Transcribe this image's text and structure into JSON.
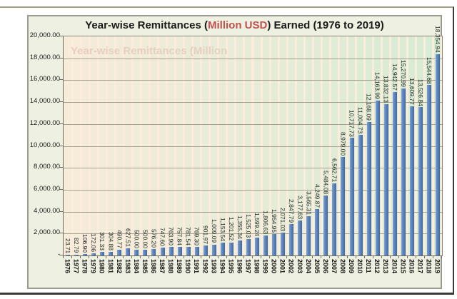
{
  "watermark": {
    "text": "Year-wise Remittances (Million"
  },
  "chart_data": {
    "type": "bar",
    "title": "Year-wise Remittances (Million USD) Earned (1976 to 2019)",
    "title_parts": {
      "prefix": "Year-wise Remittances (",
      "highlight": "Million USD",
      "suffix": ") Earned (1976 to 2019)"
    },
    "xlabel": "",
    "ylabel": "",
    "ylim": [
      0,
      20000
    ],
    "ytick_interval": 2000,
    "grid": true,
    "legend_position": "none",
    "categories": [
      "1976",
      "1977",
      "1978",
      "1979",
      "1980",
      "1981",
      "1982",
      "1983",
      "1984",
      "1985",
      "1986",
      "1987",
      "1988",
      "1989",
      "1990",
      "1991",
      "1992",
      "1993",
      "1994",
      "1995",
      "1996",
      "1997",
      "1998",
      "1999",
      "2000",
      "2001",
      "2002",
      "2003",
      "2004",
      "2005",
      "2006",
      "2007",
      "2008",
      "2009",
      "2010",
      "2011",
      "2012",
      "2013",
      "2014",
      "2015",
      "2016",
      "2017",
      "2018",
      "2019"
    ],
    "values": [
      23.71,
      82.79,
      106.9,
      172.06,
      301.33,
      304.88,
      490.77,
      627.51,
      500.0,
      500.0,
      576.2,
      747.6,
      763.9,
      757.84,
      781.54,
      769.3,
      901.97,
      1009.09,
      1153.54,
      1201.52,
      1355.34,
      1525.03,
      1599.24,
      1806.63,
      1954.95,
      2071.03,
      2847.79,
      3177.63,
      3565.31,
      4249.87,
      5484.08,
      6562.71,
      8979.0,
      10717.73,
      11004.73,
      12168.09,
      14163.99,
      13832.13,
      14942.57,
      15270.99,
      13609.77,
      13526.84,
      15544.68,
      18354.94
    ],
    "value_labels": [
      "23.71",
      "82.79",
      "106.90",
      "172.06",
      "301.33",
      "304.88",
      "490.77",
      "627.51",
      "500.00",
      "500.00",
      "576.20",
      "747.60",
      "763.90",
      "757.84",
      "781.54",
      "769.30",
      "901.97",
      "1,009.09",
      "1,153.54",
      "1,201.52",
      "1,355.34",
      "1,525.03",
      "1,599.24",
      "1,806.63",
      "1,954.95",
      "2,071.03",
      "2,847.79",
      "3,177.63",
      "3,565.31",
      "4,249.87",
      "5,484.08",
      "6,562.71",
      "8,979.00",
      "10,717.73",
      "11,004.73",
      "12,168.09",
      "14,163.99",
      "13,832.13",
      "14,942.57",
      "15,270.99",
      "13,609.77",
      "13,526.84",
      "15,544.68",
      "18,354.94"
    ],
    "ytick_labels": [
      "20,000.00",
      "18,000.00",
      "16,000.00",
      "14,000.00",
      "12,000.00",
      "10,000.00",
      "8,000.00",
      "6,000.00",
      "4,000.00",
      "2,000.00",
      "-"
    ],
    "colors": {
      "bar_light": "#7f9fd2",
      "bar_mid": "#5580bd",
      "bar_dark": "#44689c",
      "plot_bg": "#fdecdc",
      "chart_bg": "#eef1e1",
      "gridline": "#8d8776",
      "title_highlight": "#c0504d",
      "ghost_band": "#bfeccf"
    }
  }
}
